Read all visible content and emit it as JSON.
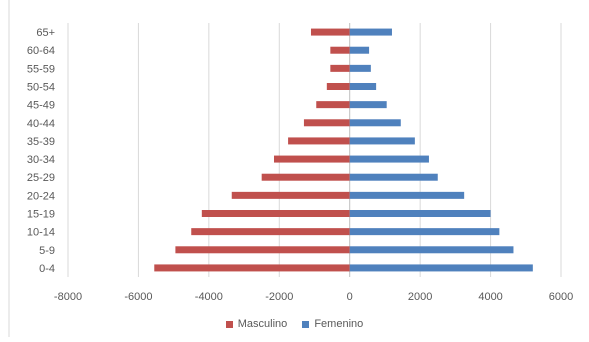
{
  "chart_data": {
    "type": "bar",
    "orientation": "horizontal",
    "categories": [
      "65+",
      "60-64",
      "55-59",
      "50-54",
      "45-49",
      "40-44",
      "35-39",
      "30-34",
      "25-29",
      "20-24",
      "15-19",
      "10-14",
      "5-9",
      "0-4"
    ],
    "series": [
      {
        "name": "Masculino",
        "color": "#C0504D",
        "values": [
          -1100,
          -550,
          -550,
          -650,
          -950,
          -1300,
          -1750,
          -2150,
          -2500,
          -3350,
          -4200,
          -4500,
          -4950,
          -5550
        ]
      },
      {
        "name": "Femenino",
        "color": "#4F81BD",
        "values": [
          1200,
          550,
          600,
          750,
          1050,
          1450,
          1850,
          2250,
          2500,
          3250,
          4000,
          4250,
          4650,
          5200
        ]
      }
    ],
    "xlim": [
      -8000,
      6000
    ],
    "xticks": [
      "-8000",
      "-6000",
      "-4000",
      "-2000",
      "0",
      "2000",
      "4000",
      "6000"
    ],
    "grid": true,
    "legend_position": "bottom"
  }
}
